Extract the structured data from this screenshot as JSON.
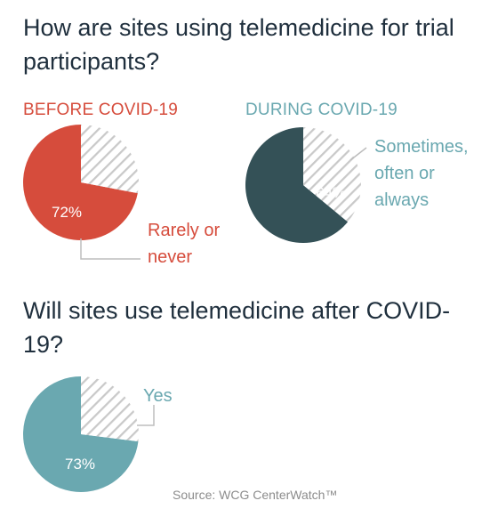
{
  "colors": {
    "title": "#1f2f3d",
    "before": "#d64c3c",
    "during": "#345157",
    "after": "#6aa8b0",
    "during_label": "#6aa8b0",
    "hatch_stroke": "#c9c9c9",
    "leader": "#bdbdbd",
    "source": "#8c8c8c"
  },
  "header": {
    "title1": "How are sites using telemedicine for trial participants?",
    "title2": "Will sites use telemedicine after COVID-19?"
  },
  "source": "Source: WCG CenterWatch™",
  "chart_data": [
    {
      "type": "pie",
      "title": "BEFORE COVID-19",
      "slices": [
        {
          "label": "Rarely or\nnever",
          "value": 72,
          "value_label": "72%",
          "color": "#d64c3c"
        },
        {
          "label": "",
          "value": 28,
          "pattern": "hatched"
        }
      ]
    },
    {
      "type": "pie",
      "title": "DURING COVID-19",
      "slices": [
        {
          "label": "Sometimes,\noften or\nalways",
          "value": 64,
          "value_label": "64%",
          "color": "#345157"
        },
        {
          "label": "",
          "value": 36,
          "pattern": "hatched"
        }
      ]
    },
    {
      "type": "pie",
      "title": "",
      "slices": [
        {
          "label": "Yes",
          "value": 73,
          "value_label": "73%",
          "color": "#6aa8b0"
        },
        {
          "label": "",
          "value": 27,
          "pattern": "hatched"
        }
      ]
    }
  ]
}
